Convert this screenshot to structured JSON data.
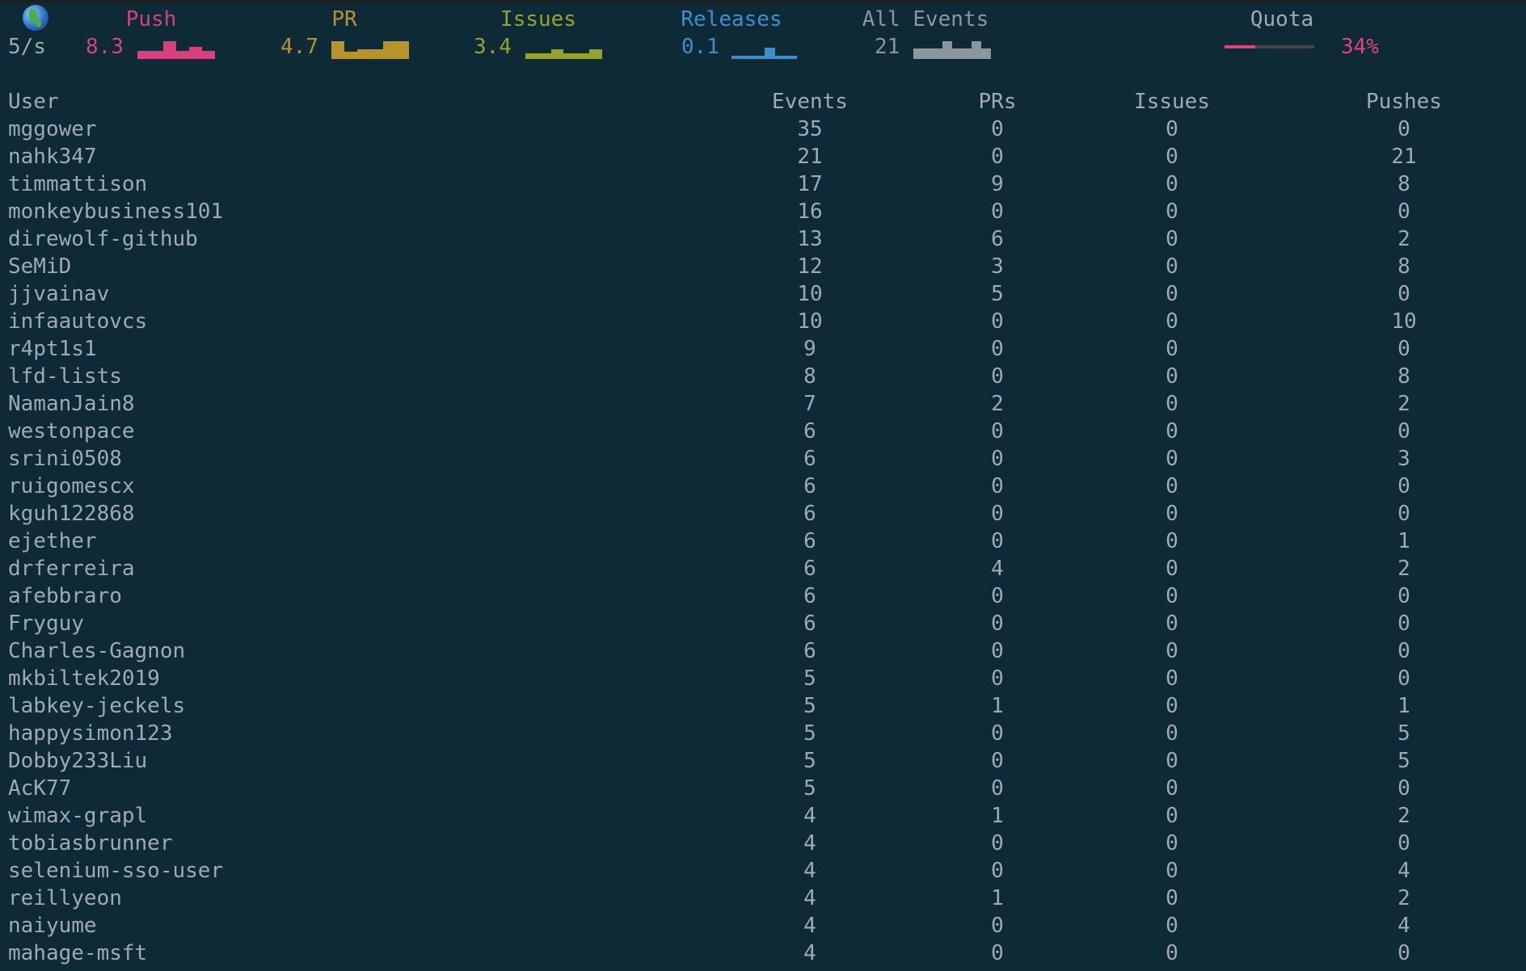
{
  "header": {
    "rate": "5/s",
    "stats": [
      {
        "label": "Push",
        "value": "8.3",
        "color": "#d6427e",
        "spark": [
          0.45,
          0.45,
          1,
          0.45,
          0.7,
          0.45
        ]
      },
      {
        "label": "PR",
        "value": "4.7",
        "color": "#b8922b",
        "spark": [
          1,
          0.4,
          0.55,
          0.55,
          1,
          1
        ]
      },
      {
        "label": "Issues",
        "value": "3.4",
        "color": "#96a22e",
        "spark": [
          0.3,
          0.3,
          0.55,
          0.3,
          0.3,
          0.55
        ]
      },
      {
        "label": "Releases",
        "value": "0.1",
        "color": "#3d8ed0",
        "spark": [
          0.2,
          0.2,
          0.2,
          0.65,
          0.2,
          0.2
        ]
      },
      {
        "label": "All Events",
        "value": "21",
        "color": "#8a979b",
        "spark": [
          0.6,
          0.6,
          0.6,
          1,
          0.6,
          0.6,
          1,
          0.6
        ]
      }
    ],
    "quota": {
      "label": "Quota",
      "value": "34%",
      "percent": 34,
      "color": "#e0447a"
    }
  },
  "table": {
    "columns": [
      "User",
      "Events",
      "PRs",
      "Issues",
      "Pushes"
    ],
    "rows": [
      [
        "mggower",
        "35",
        "0",
        "0",
        "0"
      ],
      [
        "nahk347",
        "21",
        "0",
        "0",
        "21"
      ],
      [
        "timmattison",
        "17",
        "9",
        "0",
        "8"
      ],
      [
        "monkeybusiness101",
        "16",
        "0",
        "0",
        "0"
      ],
      [
        "direwolf-github",
        "13",
        "6",
        "0",
        "2"
      ],
      [
        "SeMiD",
        "12",
        "3",
        "0",
        "8"
      ],
      [
        "jjvainav",
        "10",
        "5",
        "0",
        "0"
      ],
      [
        "infaautovcs",
        "10",
        "0",
        "0",
        "10"
      ],
      [
        "r4pt1s1",
        "9",
        "0",
        "0",
        "0"
      ],
      [
        "lfd-lists",
        "8",
        "0",
        "0",
        "8"
      ],
      [
        "NamanJain8",
        "7",
        "2",
        "0",
        "2"
      ],
      [
        "westonpace",
        "6",
        "0",
        "0",
        "0"
      ],
      [
        "srini0508",
        "6",
        "0",
        "0",
        "3"
      ],
      [
        "ruigomescx",
        "6",
        "0",
        "0",
        "0"
      ],
      [
        "kguh122868",
        "6",
        "0",
        "0",
        "0"
      ],
      [
        "ejether",
        "6",
        "0",
        "0",
        "1"
      ],
      [
        "drferreira",
        "6",
        "4",
        "0",
        "2"
      ],
      [
        "afebbraro",
        "6",
        "0",
        "0",
        "0"
      ],
      [
        "Fryguy",
        "6",
        "0",
        "0",
        "0"
      ],
      [
        "Charles-Gagnon",
        "6",
        "0",
        "0",
        "0"
      ],
      [
        "mkbiltek2019",
        "5",
        "0",
        "0",
        "0"
      ],
      [
        "labkey-jeckels",
        "5",
        "1",
        "0",
        "1"
      ],
      [
        "happysimon123",
        "5",
        "0",
        "0",
        "5"
      ],
      [
        "Dobby233Liu",
        "5",
        "0",
        "0",
        "5"
      ],
      [
        "AcK77",
        "5",
        "0",
        "0",
        "0"
      ],
      [
        "wimax-grapl",
        "4",
        "1",
        "0",
        "2"
      ],
      [
        "tobiasbrunner",
        "4",
        "0",
        "0",
        "0"
      ],
      [
        "selenium-sso-user",
        "4",
        "0",
        "0",
        "4"
      ],
      [
        "reillyeon",
        "4",
        "1",
        "0",
        "2"
      ],
      [
        "naiyume",
        "4",
        "0",
        "0",
        "4"
      ],
      [
        "mahage-msft",
        "4",
        "0",
        "0",
        "0"
      ]
    ]
  }
}
